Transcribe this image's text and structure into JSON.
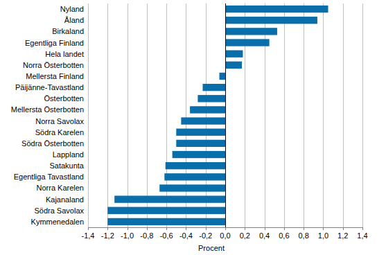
{
  "chart_data": {
    "type": "bar",
    "orientation": "horizontal",
    "x_label": "Procent",
    "categories": [
      "Nyland",
      "Åland",
      "Birkaland",
      "Egentliga Finland",
      "Hela landet",
      "Norra Österbotten",
      "Mellersta Finland",
      "Päijänne-Tavastland",
      "Österbotten",
      "Mellersta Österbotten",
      "Norra Savolax",
      "Södra Karelen",
      "Södra Österbotten",
      "Lappland",
      "Satakunta",
      "Egentliga Tavastland",
      "Norra Karelen",
      "Kajanaland",
      "Södra Savolax",
      "Kymmenedalen"
    ],
    "values": [
      1.05,
      0.94,
      0.53,
      0.45,
      0.18,
      0.17,
      -0.06,
      -0.23,
      -0.28,
      -0.36,
      -0.45,
      -0.5,
      -0.5,
      -0.54,
      -0.61,
      -0.62,
      -0.67,
      -1.13,
      -1.2,
      -1.2
    ],
    "color": "#0a6eab",
    "xlim": [
      -1.4,
      1.4
    ],
    "xticks": [
      {
        "value": -1.4,
        "label": "-1,4"
      },
      {
        "value": -1.2,
        "label": "-1,2"
      },
      {
        "value": -1.0,
        "label": "-1,0"
      },
      {
        "value": -0.8,
        "label": "-0,8"
      },
      {
        "value": -0.6,
        "label": "-0,6"
      },
      {
        "value": -0.4,
        "label": "-0,4"
      },
      {
        "value": -0.2,
        "label": "-0,2"
      },
      {
        "value": 0,
        "label": "0,0"
      },
      {
        "value": 0.2,
        "label": "0,2"
      },
      {
        "value": 0.4,
        "label": "0,4"
      },
      {
        "value": 0.6,
        "label": "0,6"
      },
      {
        "value": 0.8,
        "label": "0,8"
      },
      {
        "value": 1.0,
        "label": "1,0"
      },
      {
        "value": 1.2,
        "label": "1,2"
      },
      {
        "value": 1.4,
        "label": "1,4"
      }
    ],
    "grid": true
  }
}
